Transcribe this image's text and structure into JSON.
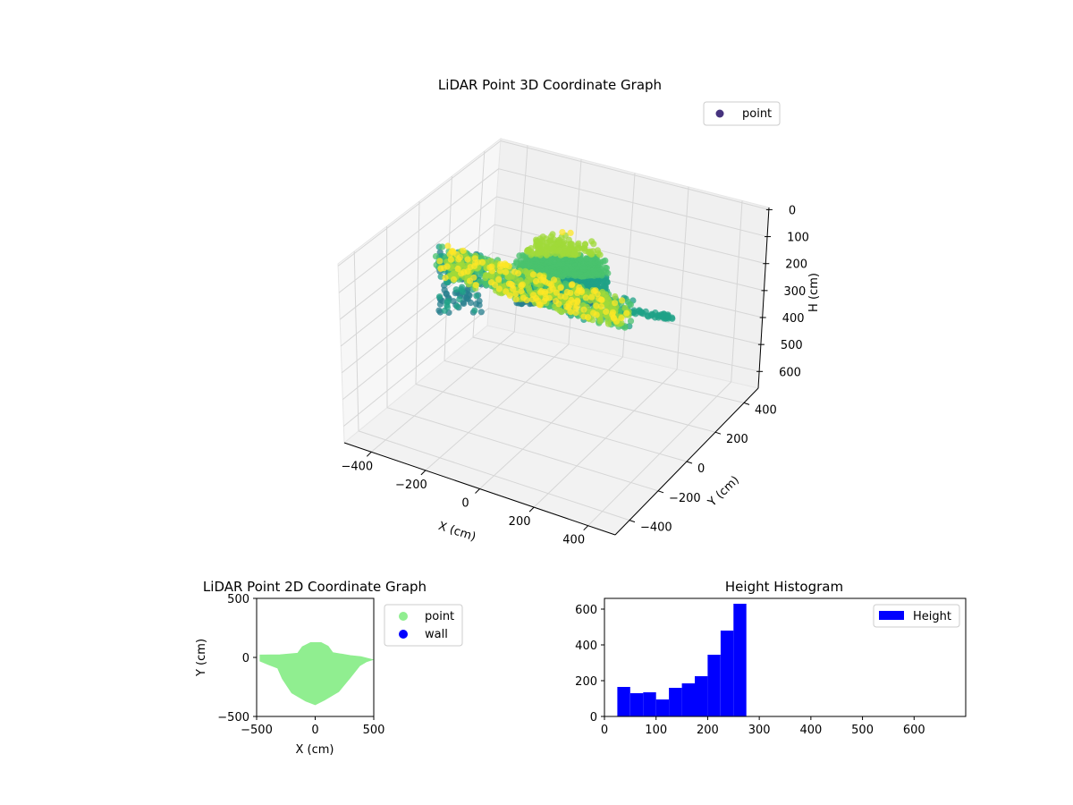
{
  "chart_data": [
    {
      "type": "scatter3d",
      "title": "LiDAR Point 3D Coordinate Graph",
      "xlabel": "X (cm)",
      "ylabel": "Y (cm)",
      "zlabel": "H (cm)",
      "xticks": [
        "−400",
        "−200",
        "0",
        "200",
        "400"
      ],
      "yticks": [
        "400",
        "200",
        "0",
        "−200",
        "−400"
      ],
      "zticks": [
        "0",
        "100",
        "200",
        "300",
        "400",
        "500",
        "600"
      ],
      "xlim": [
        -500,
        500
      ],
      "ylim": [
        -500,
        500
      ],
      "zlim": [
        0,
        650
      ],
      "z_inverted": true,
      "colormap": "viridis",
      "legend": {
        "label": "point",
        "placement": "upper-right"
      }
    },
    {
      "type": "scatter",
      "title": "LiDAR Point 2D Coordinate Graph",
      "xlabel": "X (cm)",
      "ylabel": "Y (cm)",
      "xticks": [
        "−500",
        "0",
        "500"
      ],
      "yticks": [
        "500",
        "0",
        "−500"
      ],
      "xlim": [
        -500,
        500
      ],
      "ylim": [
        -500,
        500
      ],
      "legend_placement": "outside-right",
      "series": [
        {
          "name": "point",
          "color": "#90ee90"
        },
        {
          "name": "wall",
          "color": "#0000ff"
        }
      ]
    },
    {
      "type": "bar",
      "title": "Height Histogram",
      "xlabel": "",
      "ylabel": "",
      "xticks": [
        "0",
        "100",
        "200",
        "300",
        "400",
        "500",
        "600"
      ],
      "yticks": [
        "0",
        "200",
        "400",
        "600"
      ],
      "xlim": [
        0,
        700
      ],
      "ylim": [
        0,
        660
      ],
      "bin_width": 25,
      "bin_start": 25,
      "values": [
        165,
        130,
        135,
        95,
        160,
        185,
        225,
        345,
        480,
        630
      ],
      "color": "#0000ff",
      "legend": {
        "label": "Height",
        "placement": "upper-right"
      }
    }
  ]
}
